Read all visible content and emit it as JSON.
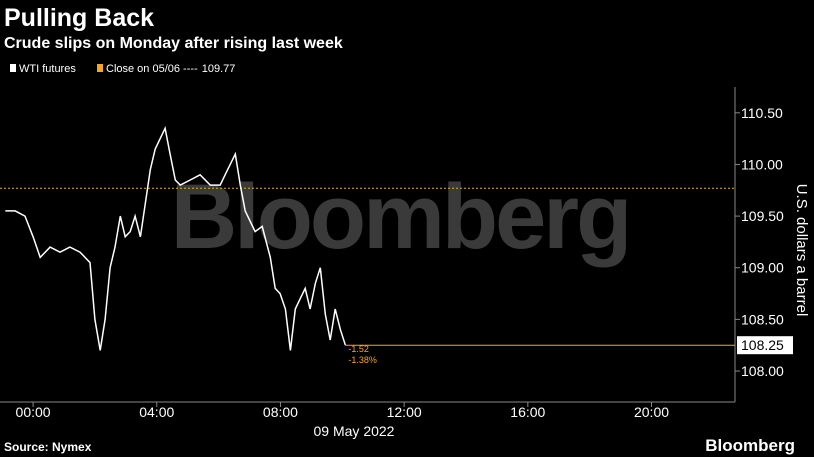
{
  "chart_data": {
    "type": "line",
    "title": "Pulling Back",
    "subtitle": "Crude slips on Monday after rising last week",
    "x_label": "09 May 2022",
    "y_label": "U.S. dollars a barrel",
    "source": "Source: Nymex",
    "brand": "Bloomberg",
    "watermark": "Bloomberg",
    "reference": {
      "name": "Close on 05/06 ----",
      "value": 109.77,
      "color": "#f5a623"
    },
    "last_value": 108.25,
    "change": -1.52,
    "change_pct": {
      "value": -1.38,
      "label": "-1.38%"
    },
    "xlim": [
      -1.07,
      22.7
    ],
    "xticks": [
      {
        "value": 0,
        "label": "00:00"
      },
      {
        "value": 4,
        "label": "04:00"
      },
      {
        "value": 8,
        "label": "08:00"
      },
      {
        "value": 12,
        "label": "12:00"
      },
      {
        "value": 16,
        "label": "16:00"
      },
      {
        "value": 20,
        "label": "20:00"
      }
    ],
    "ylim": [
      107.7,
      110.75
    ],
    "yticks": [
      {
        "value": 108,
        "label": "108.00"
      },
      {
        "value": 108.5,
        "label": "108.50"
      },
      {
        "value": 109,
        "label": "109.00"
      },
      {
        "value": 109.5,
        "label": "109.50"
      },
      {
        "value": 110,
        "label": "110.00"
      },
      {
        "value": 110.5,
        "label": "110.50"
      }
    ],
    "legend": "top-left",
    "series": [
      {
        "name": "WTI futures",
        "color": "#ffffff",
        "x": [
          -0.9,
          -0.58,
          -0.26,
          0,
          0.23,
          0.55,
          0.87,
          1.19,
          1.52,
          1.84,
          2.0,
          2.17,
          2.33,
          2.49,
          2.65,
          2.82,
          2.98,
          3.14,
          3.3,
          3.47,
          3.79,
          3.95,
          4.11,
          4.27,
          4.43,
          4.6,
          4.76,
          5.08,
          5.4,
          5.73,
          6.05,
          6.21,
          6.54,
          6.7,
          6.86,
          7.18,
          7.41,
          7.67,
          7.83,
          7.99,
          8.16,
          8.32,
          8.48,
          8.64,
          8.8,
          8.96,
          9.13,
          9.29,
          9.45,
          9.61,
          9.77,
          9.94,
          10.1
        ],
        "values": [
          109.55,
          109.55,
          109.5,
          109.3,
          109.1,
          109.2,
          109.15,
          109.2,
          109.15,
          109.05,
          108.5,
          108.2,
          108.5,
          109.0,
          109.2,
          109.5,
          109.3,
          109.35,
          109.5,
          109.3,
          109.95,
          110.15,
          110.25,
          110.35,
          110.1,
          109.85,
          109.8,
          109.85,
          109.9,
          109.8,
          109.8,
          109.9,
          110.1,
          109.8,
          109.55,
          109.35,
          109.4,
          109.1,
          108.8,
          108.75,
          108.6,
          108.2,
          108.6,
          108.7,
          108.8,
          108.6,
          108.85,
          109.0,
          108.55,
          108.3,
          108.6,
          108.4,
          108.25
        ]
      }
    ]
  }
}
